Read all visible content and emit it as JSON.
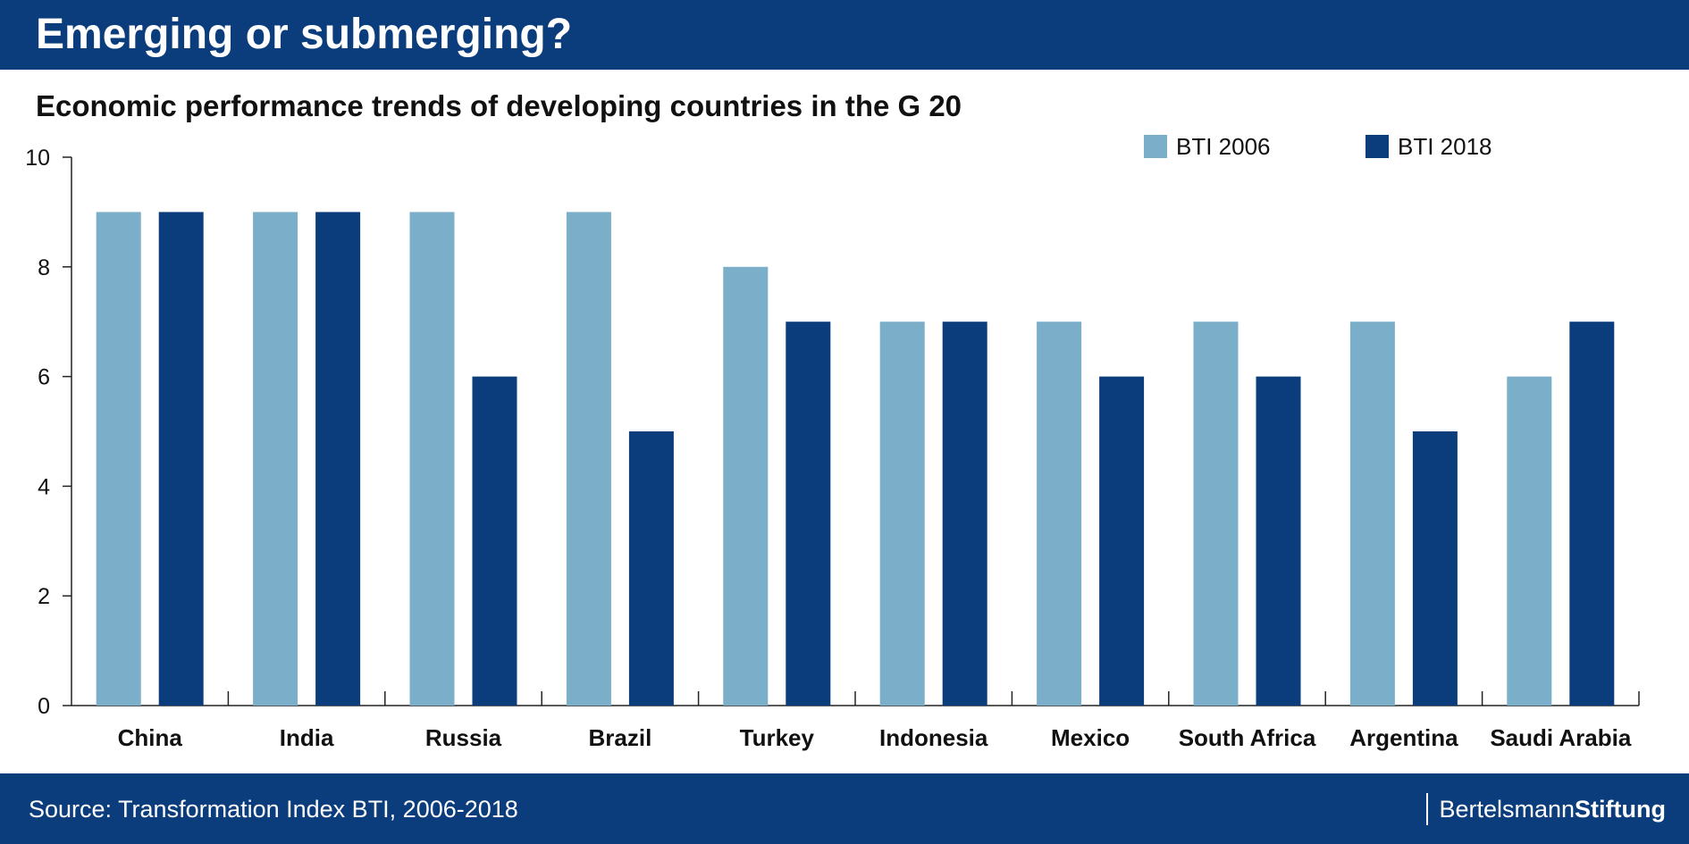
{
  "header": {
    "title": "Emerging or submerging?"
  },
  "footer": {
    "source": "Source: Transformation Index BTI, 2006-2018",
    "brand_regular": "Bertelsmann",
    "brand_bold": "Stiftung"
  },
  "colors": {
    "header_bg": "#0b3d7d",
    "bti_2006": "#7aaec9",
    "bti_2018": "#0b3d7d"
  },
  "chart_data": {
    "type": "bar",
    "title": "Economic performance trends of developing countries in the G 20",
    "xlabel": "",
    "ylabel": "",
    "ylim": [
      0,
      10
    ],
    "yticks": [
      0,
      2,
      4,
      6,
      8,
      10
    ],
    "grid": false,
    "legend_position": "top-right",
    "categories": [
      "China",
      "India",
      "Russia",
      "Brazil",
      "Turkey",
      "Indonesia",
      "Mexico",
      "South Africa",
      "Argentina",
      "Saudi Arabia"
    ],
    "series": [
      {
        "name": "BTI 2006",
        "color": "#7aaec9",
        "values": [
          9,
          9,
          9,
          9,
          8,
          7,
          7,
          7,
          7,
          6
        ]
      },
      {
        "name": "BTI 2018",
        "color": "#0b3d7d",
        "values": [
          9,
          9,
          6,
          5,
          7,
          7,
          6,
          6,
          5,
          7
        ]
      }
    ]
  }
}
